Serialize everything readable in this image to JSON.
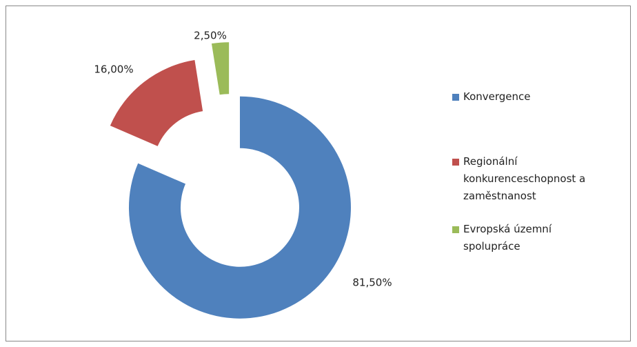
{
  "chart_data": {
    "type": "donut",
    "categories": [
      "Konvergence",
      "Regionální konkurenceschopnost a zaměstnanost",
      "Evropská územní spolupráce"
    ],
    "values": [
      81.5,
      16,
      2.5
    ],
    "value_labels": [
      "81,50%",
      "16,00%",
      "2,50%"
    ],
    "colors": [
      "#4f81bd",
      "#c0504d",
      "#9bbb59"
    ],
    "legend": "right"
  }
}
